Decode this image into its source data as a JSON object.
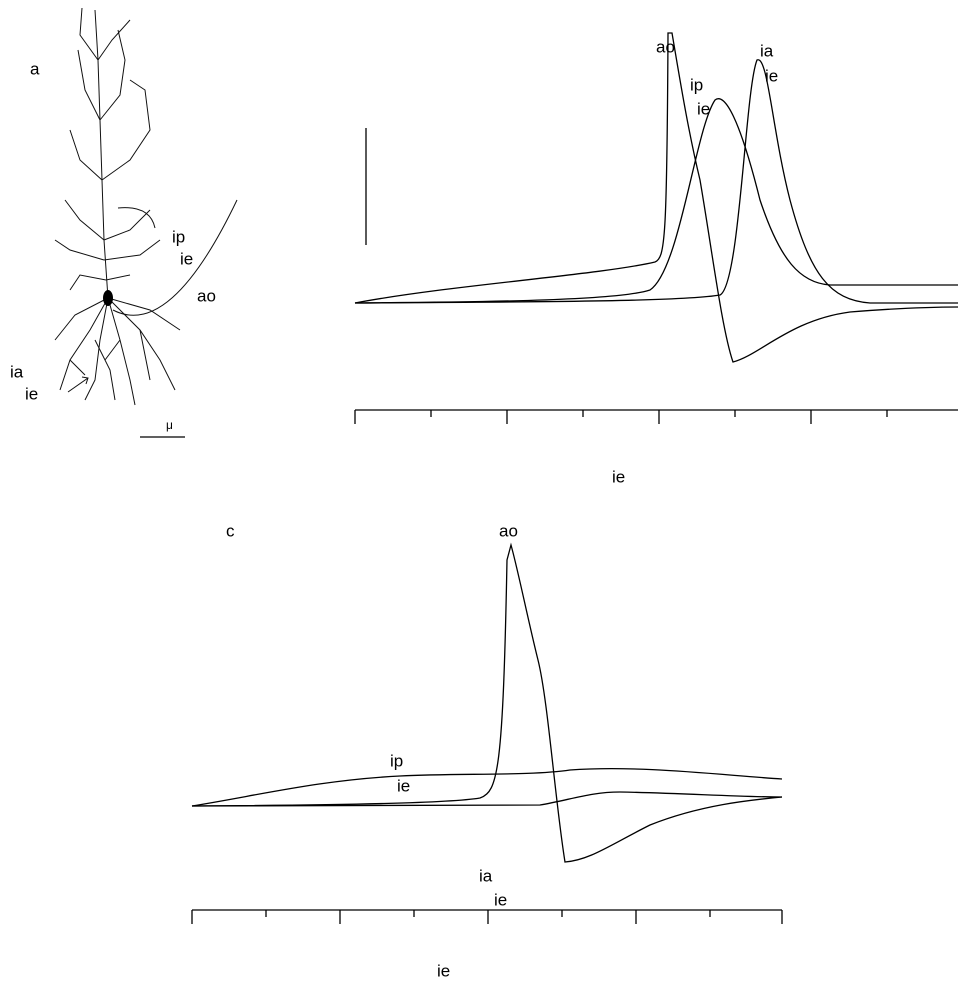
{
  "panel_a": {
    "label": "a",
    "ip": "ip",
    "ip_ie": "ie",
    "ao": "ao",
    "ia": "ia",
    "ia_ie": "ie",
    "scale": "μ"
  },
  "panel_b": {
    "ao": "ao",
    "ip": "ip",
    "ip_ie": "ie",
    "ia": "ia",
    "ia_ie": "ie",
    "xlabel": "ie"
  },
  "panel_c": {
    "label": "c",
    "ao": "ao",
    "ip": "ip",
    "ip_ie": "ie",
    "ia": "ia",
    "ia_ie": "ie",
    "xlabel": "ie"
  }
}
